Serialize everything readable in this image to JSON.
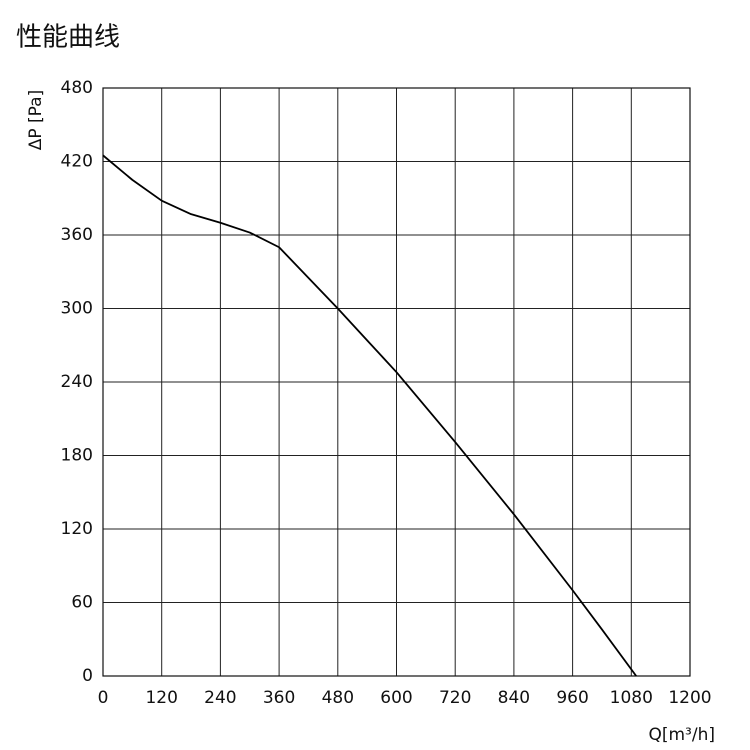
{
  "chart_data": {
    "type": "line",
    "title": "性能曲线",
    "x_label": "Q[m³/h]",
    "y_label": "ΔP [Pa]",
    "x": [
      0,
      60,
      120,
      180,
      240,
      300,
      360,
      420,
      480,
      540,
      600,
      720,
      840,
      960,
      1020,
      1090
    ],
    "series": [
      {
        "name": "ΔP",
        "color": "#000000",
        "values": [
          425,
          405,
          388,
          377,
          370,
          362,
          350,
          325,
          300,
          274,
          248,
          191,
          132,
          70,
          38,
          0
        ]
      }
    ],
    "xlim": [
      0,
      1200
    ],
    "xticks": [
      0,
      120,
      240,
      360,
      480,
      600,
      720,
      840,
      960,
      1080,
      1200
    ],
    "ylim": [
      0,
      480
    ],
    "yticks": [
      0,
      60,
      120,
      180,
      240,
      300,
      360,
      420,
      480
    ],
    "grid": true
  }
}
